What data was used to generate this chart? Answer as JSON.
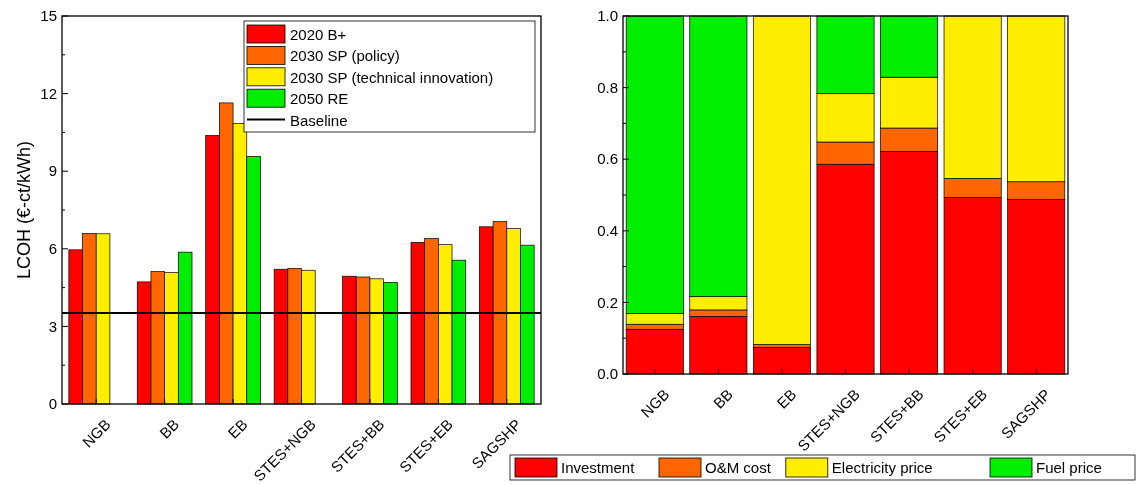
{
  "chart_data": [
    {
      "type": "bar",
      "ylabel": "LCOH (€-ct/kWh)",
      "categories": [
        "NGB",
        "BB",
        "EB",
        "STES+NGB",
        "STES+BB",
        "STES+EB",
        "SAGSHP"
      ],
      "series": [
        {
          "name": "2020 B+",
          "color": "#ff0000",
          "values": [
            5.96,
            4.72,
            10.38,
            5.21,
            4.94,
            6.25,
            6.85
          ]
        },
        {
          "name": "2030 SP (policy)",
          "color": "#ff6600",
          "values": [
            6.59,
            5.12,
            11.64,
            5.24,
            4.91,
            6.4,
            7.05
          ]
        },
        {
          "name": "2030 SP (technical innovation)",
          "color": "#ffee00",
          "values": [
            6.58,
            5.09,
            10.84,
            5.17,
            4.84,
            6.16,
            6.78
          ]
        },
        {
          "name": "2050 RE",
          "color": "#00ee00",
          "values": [
            null,
            5.87,
            9.57,
            null,
            4.7,
            5.56,
            6.14
          ]
        }
      ],
      "ylim": [
        0,
        15
      ],
      "yticks": [
        0,
        3,
        6,
        9,
        12,
        15
      ],
      "ref_lines": [
        {
          "axis": "y",
          "value": 3.52,
          "label": "Baseline",
          "color": "#000000"
        }
      ],
      "legend": "top right",
      "grid": false
    },
    {
      "type": "bar",
      "stacked": true,
      "categories": [
        "NGB",
        "BB",
        "EB",
        "STES+NGB",
        "STES+BB",
        "STES+EB",
        "SAGSHP"
      ],
      "series": [
        {
          "name": "Investment",
          "color": "#ff0000",
          "values": [
            0.125,
            0.161,
            0.074,
            0.586,
            0.622,
            0.493,
            0.487
          ]
        },
        {
          "name": "O&M cost",
          "color": "#ff6600",
          "values": [
            0.014,
            0.018,
            0.008,
            0.062,
            0.065,
            0.053,
            0.05
          ]
        },
        {
          "name": "Electricity price",
          "color": "#ffee00",
          "values": [
            0.03,
            0.037,
            0.918,
            0.135,
            0.142,
            0.454,
            0.463
          ]
        },
        {
          "name": "Fuel price",
          "color": "#00ee00",
          "values": [
            0.831,
            0.784,
            0,
            0.217,
            0.171,
            0,
            0
          ]
        }
      ],
      "ylim": [
        0,
        1
      ],
      "yticks": [
        {
          "value": 0,
          "label": "0.0"
        },
        0.2,
        0.4,
        0.6,
        0.8,
        {
          "value": 1,
          "label": "1.0"
        }
      ],
      "legend": "bottom",
      "grid": false
    }
  ]
}
